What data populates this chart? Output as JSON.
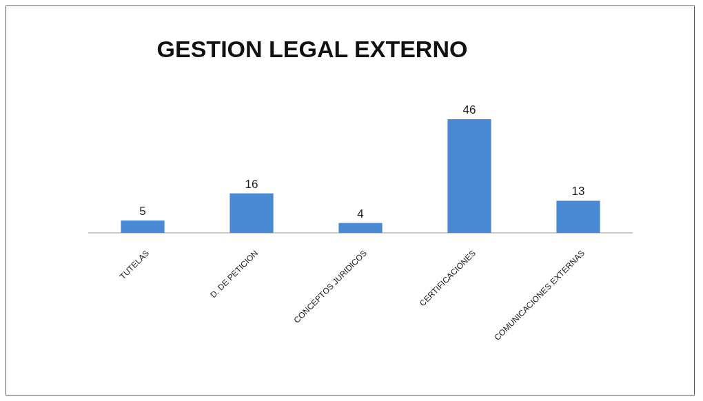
{
  "chart_data": {
    "type": "bar",
    "title": "GESTION LEGAL EXTERNO",
    "categories": [
      "TUTELAS",
      "D. DE PETICION",
      "CONCEPTOS JURIDICOS",
      "CERTIFICACIONES",
      "COMUNICACIONES EXTERNAS"
    ],
    "values": [
      5,
      16,
      4,
      46,
      13
    ],
    "color": "#4a8ad4",
    "data_labels": true
  }
}
